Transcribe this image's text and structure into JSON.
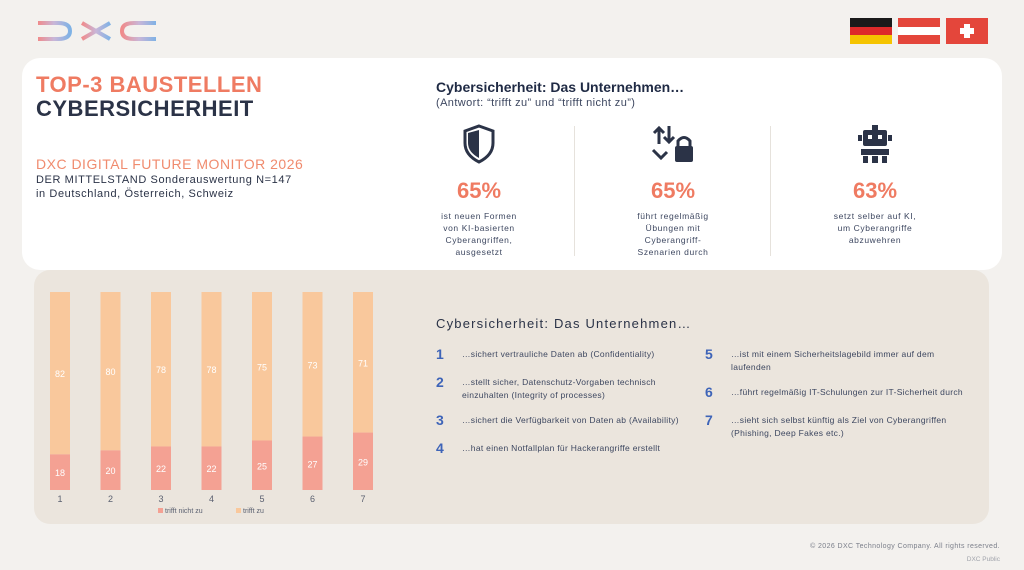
{
  "brand": {
    "logo_text": "DXC"
  },
  "flags": [
    "germany-flag",
    "austria-flag",
    "switzerland-flag"
  ],
  "header": {
    "title_line1": "TOP-3 BAUSTELLEN",
    "title_line2": "CYBERSICHERHEIT",
    "monitor": "DXC DIGITAL FUTURE MONITOR 2026",
    "subtitle_line1": "DER MITTELSTAND Sonderauswertung N=147",
    "subtitle_line2": "in Deutschland, Österreich, Schweiz"
  },
  "question": {
    "title": "Cybersicherheit: Das Unternehmen…",
    "answer_note": "(Antwort: “trifft zu” und “trifft nicht zu”)"
  },
  "stats": [
    {
      "icon": "shield-icon",
      "percent": "65%",
      "line1": "ist neuen Formen",
      "line2": "von KI-basierten",
      "line3": "Cyberangriffen,",
      "line4": "ausgesetzt"
    },
    {
      "icon": "swap-lock-icon",
      "percent": "65%",
      "line1": "führt regelmäßig",
      "line2": "Übungen mit",
      "line3": "Cyberangriff-",
      "line4": "Szenarien durch"
    },
    {
      "icon": "robot-icon",
      "percent": "63%",
      "line1": "setzt selber auf KI,",
      "line2": "um Cyberangriffe",
      "line3": "abzuwehren",
      "line4": ""
    }
  ],
  "chart_data": {
    "type": "bar",
    "stacked": true,
    "categories": [
      "1",
      "2",
      "3",
      "4",
      "5",
      "6",
      "7"
    ],
    "series": [
      {
        "name": "trifft nicht zu",
        "values": [
          18,
          20,
          22,
          22,
          25,
          27,
          29
        ],
        "color": "#f4a193"
      },
      {
        "name": "trifft zu",
        "values": [
          82,
          80,
          78,
          78,
          75,
          73,
          71
        ],
        "color": "#f9c89c"
      }
    ],
    "ylim": [
      0,
      100
    ],
    "legend": "bottom"
  },
  "list": {
    "title": "Cybersicherheit: Das Unternehmen…",
    "items": [
      {
        "num": "1",
        "line1": "…sichert vertrauliche Daten ab (Confidentiality)",
        "line2": ""
      },
      {
        "num": "2",
        "line1": "…stellt sicher, Datenschutz-Vorgaben technisch",
        "line2": "einzuhalten (Integrity of processes)"
      },
      {
        "num": "3",
        "line1": "…sichert die Verfügbarkeit von Daten ab (Availability)",
        "line2": ""
      },
      {
        "num": "4",
        "line1": "…hat einen Notfallplan für Hackerangriffe erstellt",
        "line2": ""
      },
      {
        "num": "5",
        "line1": "…ist mit einem Sicherheitslagebild immer auf dem",
        "line2": "laufenden"
      },
      {
        "num": "6",
        "line1": "…führt regelmäßig IT-Schulungen zur IT-Sicherheit durch",
        "line2": ""
      },
      {
        "num": "7",
        "line1": "…sieht sich selbst künftig als Ziel von Cyberangriffen",
        "line2": "(Phishing, Deep Fakes etc.)"
      }
    ]
  },
  "footer": {
    "copyright": "© 2026 DXC Technology Company. All rights reserved.",
    "classification": "DXC Public"
  },
  "colors": {
    "accent": "#ef7b62",
    "navy": "#2b3347",
    "number_blue": "#3e64b8"
  }
}
